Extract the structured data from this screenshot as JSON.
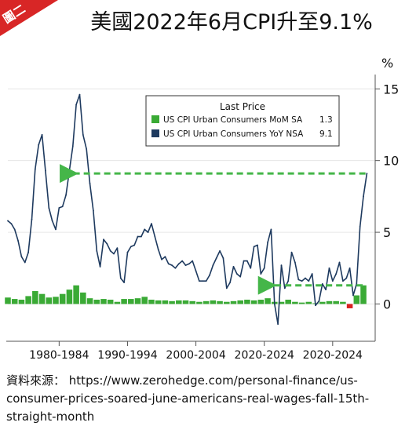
{
  "tag": "圖二",
  "title": "美國2022年6月CPI升至9.1%",
  "source": {
    "label": "資料來源：",
    "url": "https://www.zerohedge.com/personal-finance/us-consumer-prices-soared-june-americans-real-wages-fall-15th-straight-month"
  },
  "chart_data": {
    "type": "line",
    "unit": "%",
    "ylim": [
      -2.6,
      16
    ],
    "yticks": [
      0,
      5,
      10,
      15
    ],
    "xlim": [
      1970,
      2022.8
    ],
    "xtick_labels": [
      {
        "label": "1980-1984",
        "pos": 1977.5
      },
      {
        "label": "1990-1994",
        "pos": 1987.5
      },
      {
        "label": "2000-2004",
        "pos": 1997.5
      },
      {
        "label": "2020-2024",
        "pos": 2007.5
      },
      {
        "label": "2020-2024",
        "pos": 2017.5
      }
    ],
    "legend": {
      "title": "Last Price",
      "placement": "top-right",
      "entries": [
        {
          "name": "US CPI Urban Consumers MoM SA",
          "last": "1.3",
          "color": "#3aaa35"
        },
        {
          "name": "US CPI Urban Consumers YoY NSA",
          "last": "9.1",
          "color": "#1e3a5f"
        }
      ]
    },
    "series": [
      {
        "name": "US CPI Urban Consumers YoY NSA",
        "type": "line",
        "color": "#1e3a5f",
        "x": [
          1970.0,
          1970.5,
          1971.0,
          1971.5,
          1972.0,
          1972.5,
          1973.0,
          1973.5,
          1974.0,
          1974.5,
          1975.0,
          1975.5,
          1976.0,
          1976.5,
          1977.0,
          1977.5,
          1978.0,
          1978.5,
          1979.0,
          1979.5,
          1980.0,
          1980.5,
          1981.0,
          1981.5,
          1982.0,
          1982.5,
          1983.0,
          1983.5,
          1984.0,
          1984.5,
          1985.0,
          1985.5,
          1986.0,
          1986.5,
          1987.0,
          1987.5,
          1988.0,
          1988.5,
          1989.0,
          1989.5,
          1990.0,
          1990.5,
          1991.0,
          1991.5,
          1992.0,
          1992.5,
          1993.0,
          1993.5,
          1994.0,
          1994.5,
          1995.0,
          1995.5,
          1996.0,
          1996.5,
          1997.0,
          1997.5,
          1998.0,
          1998.5,
          1999.0,
          1999.5,
          2000.0,
          2000.5,
          2001.0,
          2001.5,
          2002.0,
          2002.5,
          2003.0,
          2003.5,
          2004.0,
          2004.5,
          2005.0,
          2005.5,
          2006.0,
          2006.5,
          2007.0,
          2007.5,
          2008.0,
          2008.5,
          2009.0,
          2009.5,
          2010.0,
          2010.5,
          2011.0,
          2011.5,
          2012.0,
          2012.5,
          2013.0,
          2013.5,
          2014.0,
          2014.5,
          2015.0,
          2015.5,
          2016.0,
          2016.5,
          2017.0,
          2017.5,
          2018.0,
          2018.5,
          2019.0,
          2019.5,
          2020.0,
          2020.5,
          2021.0,
          2021.5,
          2022.0,
          2022.5
        ],
        "values": [
          5.8,
          5.6,
          5.2,
          4.4,
          3.3,
          2.9,
          3.6,
          5.9,
          9.4,
          11.1,
          11.8,
          9.3,
          6.7,
          5.8,
          5.2,
          6.7,
          6.8,
          7.6,
          9.3,
          11.0,
          13.9,
          14.6,
          11.8,
          10.8,
          8.4,
          6.5,
          3.7,
          2.6,
          4.5,
          4.2,
          3.7,
          3.5,
          3.9,
          1.8,
          1.5,
          3.6,
          4.0,
          4.1,
          4.7,
          4.7,
          5.2,
          5.0,
          5.6,
          4.7,
          3.8,
          3.1,
          3.3,
          2.8,
          2.7,
          2.5,
          2.8,
          3.0,
          2.7,
          2.8,
          3.0,
          2.3,
          1.6,
          1.6,
          1.6,
          2.0,
          2.7,
          3.2,
          3.7,
          3.2,
          1.1,
          1.5,
          2.6,
          2.1,
          1.9,
          3.0,
          3.0,
          2.5,
          4.0,
          4.1,
          2.1,
          2.5,
          4.3,
          5.2,
          0.0,
          -1.4,
          2.7,
          1.1,
          1.6,
          3.6,
          2.9,
          1.7,
          1.6,
          1.8,
          1.6,
          2.1,
          -0.1,
          0.2,
          1.4,
          1.0,
          2.5,
          1.6,
          2.1,
          2.9,
          1.6,
          1.8,
          2.5,
          0.6,
          1.4,
          5.4,
          7.5,
          9.1
        ]
      },
      {
        "name": "US CPI Urban Consumers MoM SA",
        "type": "bar",
        "color": "#3aaa35",
        "negative_color": "#d9201f",
        "x": [
          1970,
          1971,
          1972,
          1973,
          1974,
          1975,
          1976,
          1977,
          1978,
          1979,
          1980,
          1981,
          1982,
          1983,
          1984,
          1985,
          1986,
          1987,
          1988,
          1989,
          1990,
          1991,
          1992,
          1993,
          1994,
          1995,
          1996,
          1997,
          1998,
          1999,
          2000,
          2001,
          2002,
          2003,
          2004,
          2005,
          2006,
          2007,
          2008,
          2009,
          2010,
          2011,
          2012,
          2013,
          2014,
          2015,
          2016,
          2017,
          2018,
          2019,
          2020,
          2021,
          2022
        ],
        "values": [
          0.45,
          0.35,
          0.3,
          0.55,
          0.9,
          0.7,
          0.45,
          0.5,
          0.7,
          1.0,
          1.3,
          0.8,
          0.4,
          0.3,
          0.35,
          0.3,
          0.15,
          0.35,
          0.35,
          0.4,
          0.5,
          0.3,
          0.25,
          0.25,
          0.2,
          0.25,
          0.25,
          0.2,
          0.15,
          0.2,
          0.25,
          0.2,
          0.15,
          0.2,
          0.25,
          0.3,
          0.25,
          0.3,
          0.4,
          0.15,
          0.15,
          0.3,
          0.15,
          0.1,
          0.15,
          0.05,
          0.15,
          0.2,
          0.2,
          0.15,
          -0.3,
          0.6,
          1.3
        ]
      }
    ],
    "annotations": [
      {
        "type": "dashed-arrow",
        "from": [
          2022.3,
          9.1
        ],
        "to": [
          1978.5,
          9.1
        ],
        "color": "#45b649"
      },
      {
        "type": "dashed-arrow",
        "from": [
          2021.9,
          1.3
        ],
        "to": [
          2007.5,
          1.3
        ],
        "color": "#45b649"
      }
    ]
  }
}
